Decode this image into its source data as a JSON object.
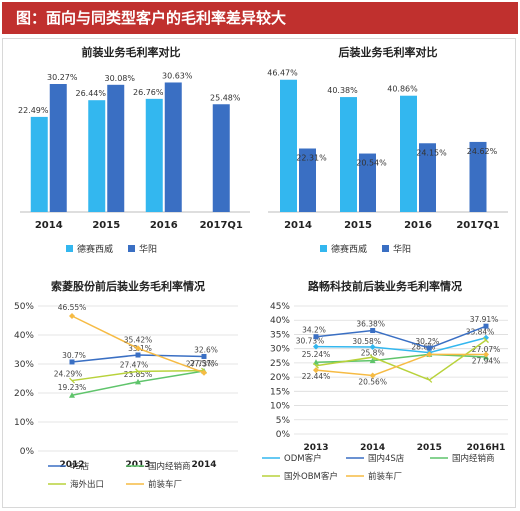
{
  "banner": {
    "title": "图：面向与同类型客户的毛利率差异较大"
  },
  "colors": {
    "banner": "#c0302e",
    "light_blue": "#33b7ef",
    "dark_blue": "#3a6fc3",
    "green": "#5fc46b",
    "orange": "#f6bb44",
    "yellow_green": "#b8d23b"
  },
  "chart_data": [
    {
      "type": "bar",
      "title": "前装业务毛利率对比",
      "categories": [
        "2014",
        "2015",
        "2016",
        "2017Q1"
      ],
      "series": [
        {
          "name": "德赛西威",
          "values": [
            22.49,
            26.44,
            26.76,
            null
          ],
          "labels": [
            "22.49%",
            "26.44%",
            "26.76%",
            ""
          ]
        },
        {
          "name": "华阳",
          "values": [
            30.27,
            30.08,
            30.63,
            25.48
          ],
          "labels": [
            "30.27%",
            "30.08%",
            "30.63%",
            "25.48%"
          ]
        }
      ],
      "ylim": [
        0,
        35
      ],
      "legend": "bottom"
    },
    {
      "type": "bar",
      "title": "后装业务毛利率对比",
      "categories": [
        "2014",
        "2015",
        "2016",
        "2017Q1"
      ],
      "series": [
        {
          "name": "德赛西威",
          "values": [
            46.47,
            40.38,
            40.86,
            null
          ],
          "labels": [
            "46.47%",
            "40.38%",
            "40.86%",
            ""
          ]
        },
        {
          "name": "华阳",
          "values": [
            22.31,
            20.54,
            24.15,
            24.62
          ],
          "labels": [
            "22.31%",
            "20.54%",
            "24.15%",
            "24.62%"
          ]
        }
      ],
      "ylim": [
        0,
        52
      ],
      "legend": "bottom"
    },
    {
      "type": "line",
      "title": "索菱股份前后装业务毛利率情况",
      "categories": [
        "2012",
        "2013",
        "2014"
      ],
      "y_ticks": [
        "0%",
        "10%",
        "20%",
        "30%",
        "40%",
        "50%"
      ],
      "ylim": [
        0,
        50
      ],
      "grid": true,
      "series": [
        {
          "name": "4S店",
          "values": [
            30.7,
            33.1,
            32.6
          ],
          "labels": [
            "30.7%",
            "33.1%",
            "32.6%"
          ]
        },
        {
          "name": "国内经销商",
          "values": [
            19.23,
            23.85,
            27.57
          ],
          "labels": [
            "19.23%",
            "23.85%",
            "27.57%"
          ]
        },
        {
          "name": "海外出口",
          "values": [
            24.29,
            27.47,
            27.73
          ],
          "labels": [
            "24.29%",
            "27.47%",
            "27.73%"
          ]
        },
        {
          "name": "前装车厂",
          "values": [
            46.55,
            35.42,
            27.0
          ],
          "labels": [
            "46.55%",
            "35.42%",
            ""
          ]
        }
      ],
      "legend": "bottom"
    },
    {
      "type": "line",
      "title": "路畅科技前后装业务毛利率情况",
      "categories": [
        "2013",
        "2014",
        "2015",
        "2016H1"
      ],
      "y_ticks": [
        "0%",
        "5%",
        "10%",
        "15%",
        "20%",
        "25%",
        "30%",
        "35%",
        "40%",
        "45%"
      ],
      "ylim": [
        0,
        45
      ],
      "grid": true,
      "series": [
        {
          "name": "ODM客户",
          "values": [
            30.73,
            30.58,
            28.6,
            33.84
          ],
          "labels": [
            "30.73%",
            "30.58%",
            "28.6%",
            "33.84%"
          ]
        },
        {
          "name": "国内4S店",
          "values": [
            34.2,
            36.38,
            30.2,
            37.91
          ],
          "labels": [
            "34.2%",
            "36.38%",
            "30.2%",
            "37.91%"
          ]
        },
        {
          "name": "国内经销商",
          "values": [
            25.24,
            25.8,
            28.0,
            27.07
          ],
          "labels": [
            "25.24%",
            "25.8%",
            "",
            "27.07%"
          ]
        },
        {
          "name": "国外OBM客户",
          "values": [
            24.0,
            27.0,
            19.0,
            33.0
          ],
          "labels": [
            "",
            "",
            "",
            ""
          ]
        },
        {
          "name": "前装车厂",
          "values": [
            22.44,
            20.56,
            28.0,
            27.94
          ],
          "labels": [
            "22.44%",
            "20.56%",
            "",
            "27.94%"
          ]
        }
      ],
      "legend": "bottom"
    }
  ]
}
